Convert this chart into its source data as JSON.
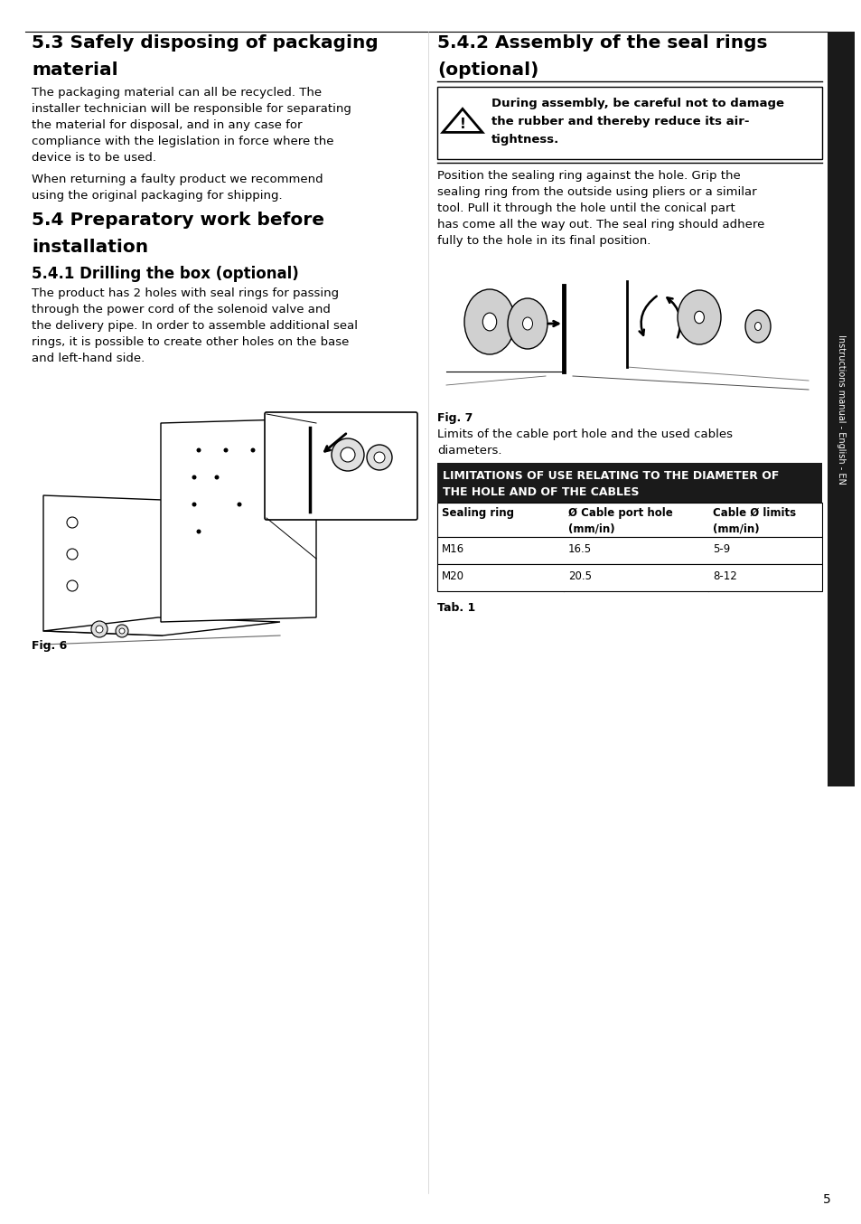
{
  "page_bg": "#ffffff",
  "section_53_title_line1": "5.3 Safely disposing of packaging",
  "section_53_title_line2": "material",
  "section_53_body1": "The packaging material can all be recycled. The\ninstaller technician will be responsible for separating\nthe material for disposal, and in any case for\ncompliance with the legislation in force where the\ndevice is to be used.",
  "section_53_body2": "When returning a faulty product we recommend\nusing the original packaging for shipping.",
  "section_54_title_line1": "5.4 Preparatory work before",
  "section_54_title_line2": "installation",
  "section_541_title": "5.4.1 Drilling the box (optional)",
  "section_541_body": "The product has 2 holes with seal rings for passing\nthrough the power cord of the solenoid valve and\nthe delivery pipe. In order to assemble additional seal\nrings, it is possible to create other holes on the base\nand left-hand side.",
  "fig6_label": "Fig. 6",
  "section_542_title_line1": "5.4.2 Assembly of the seal rings",
  "section_542_title_line2": "(optional)",
  "warning_text_line1": "During assembly, be careful not to damage",
  "warning_text_line2": "the rubber and thereby reduce its air-",
  "warning_text_line3": "tightness.",
  "section_542_body": "Position the sealing ring against the hole. Grip the\nsealing ring from the outside using pliers or a similar\ntool. Pull it through the hole until the conical part\nhas come all the way out. The seal ring should adhere\nfully to the hole in its final position.",
  "fig7_label": "Fig. 7",
  "table_caption": "Limits of the cable port hole and the used cables\ndiameters.",
  "table_header_bg": "#1a1a1a",
  "table_header_text": "#ffffff",
  "table_header_line1": "LIMITATIONS OF USE RELATING TO THE DIAMETER OF",
  "table_header_line2": "THE HOLE AND OF THE CABLES",
  "table_col1_header": "Sealing ring",
  "table_col2_header": "Ø Cable port hole\n(mm/in)",
  "table_col3_header": "Cable Ø limits\n(mm/in)",
  "table_row1": [
    "M16",
    "16.5",
    "5-9"
  ],
  "table_row2": [
    "M20",
    "20.5",
    "8-12"
  ],
  "tab1_label": "Tab. 1",
  "sidebar_text": "Instructions manual - English - EN",
  "page_number": "5",
  "sidebar_bg": "#1a1a1a",
  "title_font_size": 14.5,
  "body_font_size": 9.5,
  "section_sub_font_size": 12,
  "warning_font_size": 9.5,
  "table_font_size": 8.5
}
